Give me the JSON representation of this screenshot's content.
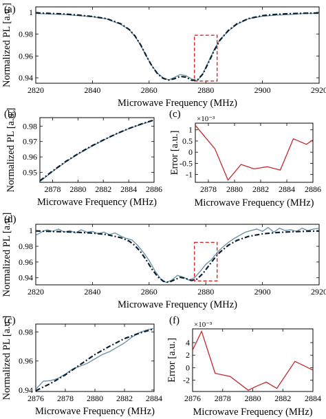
{
  "figure": {
    "labels": {
      "a": "(a)",
      "b": "(b)",
      "c1": "(c)",
      "d": "(d)",
      "c2": "(c)",
      "f": "(f)"
    },
    "colors": {
      "measured": "#6f93a6",
      "fit": "#0b1f33",
      "error": "#c1272d",
      "roi": "#dd2222"
    }
  },
  "chart_data": [
    {
      "panel": "a",
      "type": "line",
      "xlabel": "Microwave Frequency (MHz)",
      "ylabel": "Normalized PL [a.u.]",
      "xlim": [
        2820,
        2920
      ],
      "ylim": [
        0.935,
        1.005
      ],
      "xticks": [
        2820,
        2840,
        2860,
        2880,
        2900,
        2920
      ],
      "yticks": [
        0.94,
        0.96,
        0.98,
        1
      ],
      "ytick_labels": [
        "0.94",
        "0.96",
        "0.98",
        "1"
      ],
      "roi": {
        "x": [
          2876,
          2884
        ],
        "y": [
          0.937,
          0.979
        ]
      },
      "series": [
        {
          "style": "solid",
          "x": [
            2820,
            2825,
            2830,
            2835,
            2840,
            2845,
            2850,
            2853,
            2855,
            2857,
            2859,
            2861,
            2863,
            2865,
            2867,
            2869,
            2871,
            2873,
            2875,
            2877,
            2879,
            2881,
            2883,
            2885,
            2888,
            2891,
            2895,
            2900,
            2905,
            2910,
            2915,
            2920
          ],
          "y": [
            0.999,
            0.9985,
            0.998,
            0.997,
            0.996,
            0.994,
            0.989,
            0.984,
            0.978,
            0.97,
            0.96,
            0.951,
            0.944,
            0.94,
            0.938,
            0.9405,
            0.943,
            0.942,
            0.939,
            0.937,
            0.944,
            0.955,
            0.966,
            0.975,
            0.983,
            0.989,
            0.994,
            0.9965,
            0.9975,
            0.998,
            0.999,
            0.999
          ]
        },
        {
          "style": "dashdot",
          "x": [
            2820,
            2825,
            2830,
            2835,
            2840,
            2845,
            2850,
            2853,
            2855,
            2857,
            2859,
            2861,
            2863,
            2865,
            2867,
            2869,
            2871,
            2873,
            2875,
            2877,
            2879,
            2881,
            2883,
            2885,
            2888,
            2891,
            2895,
            2900,
            2905,
            2910,
            2915,
            2920
          ],
          "y": [
            0.9995,
            0.999,
            0.9985,
            0.9975,
            0.9962,
            0.9942,
            0.9895,
            0.9842,
            0.9784,
            0.9703,
            0.9601,
            0.9508,
            0.9436,
            0.9394,
            0.9379,
            0.9392,
            0.9413,
            0.9406,
            0.9377,
            0.9378,
            0.9436,
            0.9542,
            0.9652,
            0.9745,
            0.9835,
            0.9895,
            0.9942,
            0.997,
            0.9982,
            0.9988,
            0.9992,
            0.9994
          ]
        }
      ]
    },
    {
      "panel": "b",
      "type": "line",
      "xlabel": "Microwave Frequency (MHz)",
      "ylabel": "Normalized PL [a.u.]",
      "xlim": [
        2877,
        2886
      ],
      "ylim": [
        0.9435,
        0.9855
      ],
      "xticks": [
        2878,
        2880,
        2882,
        2884,
        2886
      ],
      "yticks": [
        0.95,
        0.96,
        0.97,
        0.98
      ],
      "ytick_labels": [
        "0.95",
        "0.96",
        "0.97",
        "0.98"
      ],
      "series": [
        {
          "style": "solid",
          "x": [
            2877,
            2878,
            2879,
            2880,
            2881,
            2882,
            2883,
            2884,
            2885,
            2886
          ],
          "y": [
            0.944,
            0.9505,
            0.9565,
            0.9618,
            0.9665,
            0.9708,
            0.9748,
            0.9783,
            0.9812,
            0.9838
          ]
        },
        {
          "style": "dashdot",
          "x": [
            2877,
            2878,
            2879,
            2880,
            2881,
            2882,
            2883,
            2884,
            2885,
            2886
          ],
          "y": [
            0.9445,
            0.9508,
            0.9568,
            0.962,
            0.9668,
            0.971,
            0.9749,
            0.9784,
            0.9814,
            0.984
          ]
        }
      ]
    },
    {
      "panel": "c",
      "type": "line",
      "ylabel": "Error [a.u.]",
      "xlabel": "Microwave Frequency (MHz)",
      "xlim": [
        2877,
        2886
      ],
      "ylim": [
        -1.35,
        1.3
      ],
      "yscale_label": "×10⁻³",
      "xticks": [
        2878,
        2880,
        2882,
        2884,
        2886
      ],
      "yticks": [
        -1,
        -0.5,
        0,
        0.5,
        1
      ],
      "ytick_labels": [
        "-1",
        "-0.5",
        "0",
        "0.5",
        "1"
      ],
      "series": [
        {
          "style": "solid",
          "x": [
            2877,
            2878.5,
            2879.5,
            2880.5,
            2881.5,
            2882.5,
            2883.5,
            2884.5,
            2885.5,
            2886
          ],
          "y": [
            1.2,
            0.15,
            -1.25,
            -0.55,
            -0.75,
            -0.65,
            -0.8,
            0.6,
            0.35,
            0.55
          ]
        }
      ]
    },
    {
      "panel": "d",
      "type": "line",
      "xlabel": "Microwave Frequency (MHz)",
      "ylabel": "Normalized PL [a.u.]",
      "xlim": [
        2820,
        2920
      ],
      "ylim": [
        0.931,
        1.008
      ],
      "xticks": [
        2820,
        2840,
        2860,
        2880,
        2900,
        2920
      ],
      "yticks": [
        0.94,
        0.96,
        0.98,
        1
      ],
      "ytick_labels": [
        "0.94",
        "0.96",
        "0.98",
        "1"
      ],
      "roi": {
        "x": [
          2876,
          2884
        ],
        "y": [
          0.936,
          0.985
        ]
      },
      "series": [
        {
          "style": "solid",
          "x": [
            2820,
            2822,
            2824,
            2826,
            2828,
            2830,
            2832,
            2834,
            2836,
            2838,
            2840,
            2842,
            2844,
            2846,
            2848,
            2850,
            2852,
            2854,
            2856,
            2858,
            2860,
            2862,
            2864,
            2866,
            2868,
            2870,
            2872,
            2874,
            2876,
            2878,
            2880,
            2882,
            2884,
            2886,
            2888,
            2890,
            2892,
            2894,
            2896,
            2898,
            2900,
            2902,
            2904,
            2906,
            2908,
            2910,
            2912,
            2914,
            2916,
            2918,
            2920
          ],
          "y": [
            0.994,
            0.998,
            1.001,
            0.999,
            1.002,
            0.998,
            1.0,
            0.997,
            1.001,
            0.998,
            0.999,
            0.996,
            0.998,
            0.995,
            0.997,
            0.993,
            0.99,
            0.988,
            0.981,
            0.972,
            0.962,
            0.949,
            0.939,
            0.934,
            0.937,
            0.943,
            0.941,
            0.937,
            0.94,
            0.948,
            0.957,
            0.963,
            0.972,
            0.979,
            0.985,
            0.99,
            0.994,
            0.998,
            1.0,
            1.002,
            0.999,
            1.004,
            0.998,
            1.003,
            1.0,
            1.001,
            0.999,
            1.003,
            1.0,
            1.002,
            1.003
          ]
        },
        {
          "style": "dashdot",
          "x": [
            2820,
            2825,
            2830,
            2835,
            2840,
            2845,
            2850,
            2853,
            2855,
            2857,
            2859,
            2861,
            2863,
            2865,
            2867,
            2869,
            2871,
            2873,
            2875,
            2877,
            2879,
            2881,
            2883,
            2885,
            2888,
            2891,
            2895,
            2900,
            2905,
            2910,
            2915,
            2920
          ],
          "y": [
            0.9995,
            0.999,
            0.9985,
            0.9978,
            0.9968,
            0.995,
            0.991,
            0.9865,
            0.981,
            0.973,
            0.9625,
            0.951,
            0.9415,
            0.9355,
            0.9342,
            0.9375,
            0.9405,
            0.939,
            0.9365,
            0.9385,
            0.9455,
            0.955,
            0.9645,
            0.9725,
            0.9815,
            0.9875,
            0.9925,
            0.9958,
            0.9975,
            0.9985,
            0.9991,
            0.9994
          ]
        }
      ]
    },
    {
      "panel": "e",
      "type": "line",
      "xlabel": "Microwave Frequency (MHz)",
      "ylabel": "Normalized PL [a.u.]",
      "xlim": [
        2876,
        2884
      ],
      "ylim": [
        0.939,
        0.9855
      ],
      "xticks": [
        2876,
        2878,
        2880,
        2882,
        2884
      ],
      "yticks": [
        0.94,
        0.96,
        0.98
      ],
      "ytick_labels": [
        "0.94",
        "0.96",
        "0.98"
      ],
      "series": [
        {
          "style": "solid",
          "x": [
            2876,
            2876.5,
            2877,
            2877.5,
            2878,
            2878.5,
            2879,
            2879.5,
            2880,
            2880.5,
            2881,
            2881.5,
            2882,
            2882.5,
            2883,
            2883.5,
            2884
          ],
          "y": [
            0.9405,
            0.946,
            0.9465,
            0.948,
            0.951,
            0.9545,
            0.9565,
            0.9585,
            0.9615,
            0.9645,
            0.9665,
            0.9695,
            0.9725,
            0.9765,
            0.9795,
            0.9815,
            0.9825
          ]
        },
        {
          "style": "dashdot",
          "x": [
            2876,
            2877,
            2878,
            2879,
            2880,
            2881,
            2882,
            2883,
            2884
          ],
          "y": [
            0.9395,
            0.9445,
            0.9505,
            0.9575,
            0.9645,
            0.9702,
            0.9755,
            0.9792,
            0.9822
          ]
        }
      ]
    },
    {
      "panel": "f",
      "type": "line",
      "ylabel": "Error [a.u.]",
      "xlabel": "Microwave Frequency (MHz)",
      "xlim": [
        2876,
        2884
      ],
      "ylim": [
        -3.8,
        6.2
      ],
      "yscale_label": "×10⁻³",
      "xticks": [
        2876,
        2878,
        2880,
        2882,
        2884
      ],
      "yticks": [
        -2,
        0,
        2,
        4
      ],
      "ytick_labels": [
        "-2",
        "0",
        "2",
        "4"
      ],
      "series": [
        {
          "style": "solid",
          "x": [
            2876,
            2876.6,
            2877.5,
            2878.5,
            2879.7,
            2880.3,
            2880.9,
            2881.6,
            2882.8,
            2883.5,
            2884
          ],
          "y": [
            2.8,
            5.8,
            -0.9,
            -1.4,
            -3.6,
            -2.9,
            -2.3,
            -3.3,
            1.0,
            0.2,
            -0.4
          ]
        }
      ]
    }
  ]
}
